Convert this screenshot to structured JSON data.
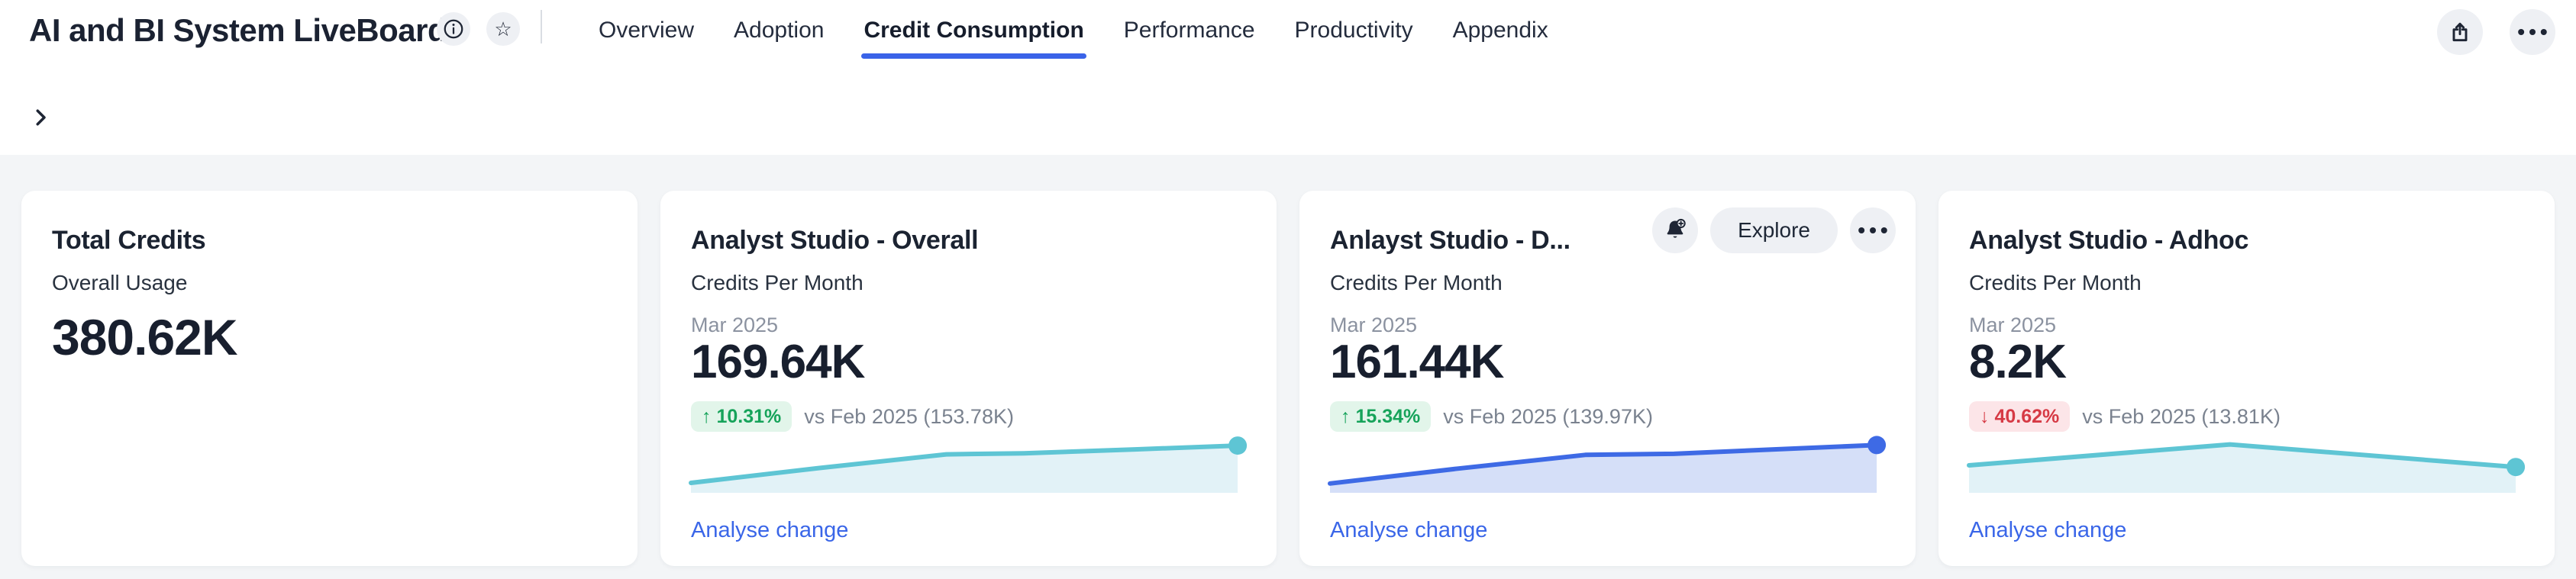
{
  "page": {
    "background": "#F3F5F7",
    "accent_blue": "#3A63E8",
    "link_blue": "#3A66E8"
  },
  "header": {
    "title": "AI and BI System LiveBoard",
    "tabs": [
      {
        "label": "Overview",
        "active": false
      },
      {
        "label": "Adoption",
        "active": false
      },
      {
        "label": "Credit Consumption",
        "active": true
      },
      {
        "label": "Performance",
        "active": false
      },
      {
        "label": "Productivity",
        "active": false
      },
      {
        "label": "Appendix",
        "active": false
      }
    ],
    "icons": {
      "star_glyph": "☆",
      "dots_glyph": "•••"
    }
  },
  "badge_colors": {
    "up_bg": "#E2F5EA",
    "up_text": "#16A35A",
    "down_bg": "#FCE5E8",
    "down_text": "#D63A45"
  },
  "cards": [
    {
      "title": "Total Credits",
      "subtitle": "Overall Usage",
      "value": "380.62K"
    },
    {
      "title": "Analyst Studio - Overall",
      "subtitle": "Credits Per Month",
      "period": "Mar 2025",
      "value": "169.64K",
      "change": {
        "direction": "up",
        "arrow": "↑",
        "percent": "10.31%",
        "comparison": "vs Feb 2025 (153.78K)"
      },
      "link_label": "Analyse change",
      "sparkline": {
        "line_color": "#5EC5D4",
        "fill_color": "#E2F2F7",
        "points": [
          [
            0,
            0.82
          ],
          [
            0.23,
            0.55
          ],
          [
            0.46,
            0.3
          ],
          [
            0.6,
            0.28
          ],
          [
            0.8,
            0.21
          ],
          [
            0.985,
            0.14
          ]
        ]
      }
    },
    {
      "title": "Anlayst Studio - D...",
      "subtitle": "Credits Per Month",
      "period": "Mar 2025",
      "value": "161.44K",
      "toolbar": {
        "explore_label": "Explore"
      },
      "change": {
        "direction": "up",
        "arrow": "↑",
        "percent": "15.34%",
        "comparison": "vs Feb 2025 (139.97K)"
      },
      "link_label": "Analyse change",
      "sparkline": {
        "line_color": "#3E6AE5",
        "fill_color": "#D5DFF8",
        "points": [
          [
            0,
            0.83
          ],
          [
            0.23,
            0.56
          ],
          [
            0.46,
            0.31
          ],
          [
            0.62,
            0.29
          ],
          [
            0.8,
            0.21
          ],
          [
            0.985,
            0.13
          ]
        ]
      }
    },
    {
      "title": "Analyst Studio - Adhoc",
      "subtitle": "Credits Per Month",
      "period": "Mar 2025",
      "value": "8.2K",
      "change": {
        "direction": "down",
        "arrow": "↓",
        "percent": "40.62%",
        "comparison": "vs Feb 2025 (13.81K)"
      },
      "link_label": "Analyse change",
      "sparkline": {
        "line_color": "#5EC5D4",
        "fill_color": "#E2F2F7",
        "points": [
          [
            0,
            0.5
          ],
          [
            0.47,
            0.12
          ],
          [
            0.985,
            0.53
          ]
        ]
      }
    }
  ],
  "chart_data": [
    {
      "type": "area",
      "card": "Analyst Studio - Overall",
      "series": "Credits Per Month",
      "known_points": {
        "Feb 2025": "153.78K",
        "Mar 2025": "169.64K"
      },
      "trend": "rising"
    },
    {
      "type": "area",
      "card": "Anlayst Studio - D...",
      "series": "Credits Per Month",
      "known_points": {
        "Feb 2025": "139.97K",
        "Mar 2025": "161.44K"
      },
      "trend": "rising"
    },
    {
      "type": "area",
      "card": "Analyst Studio - Adhoc",
      "series": "Credits Per Month",
      "known_points": {
        "Feb 2025": "13.81K",
        "Mar 2025": "8.2K"
      },
      "trend": "peak-then-falling"
    }
  ]
}
